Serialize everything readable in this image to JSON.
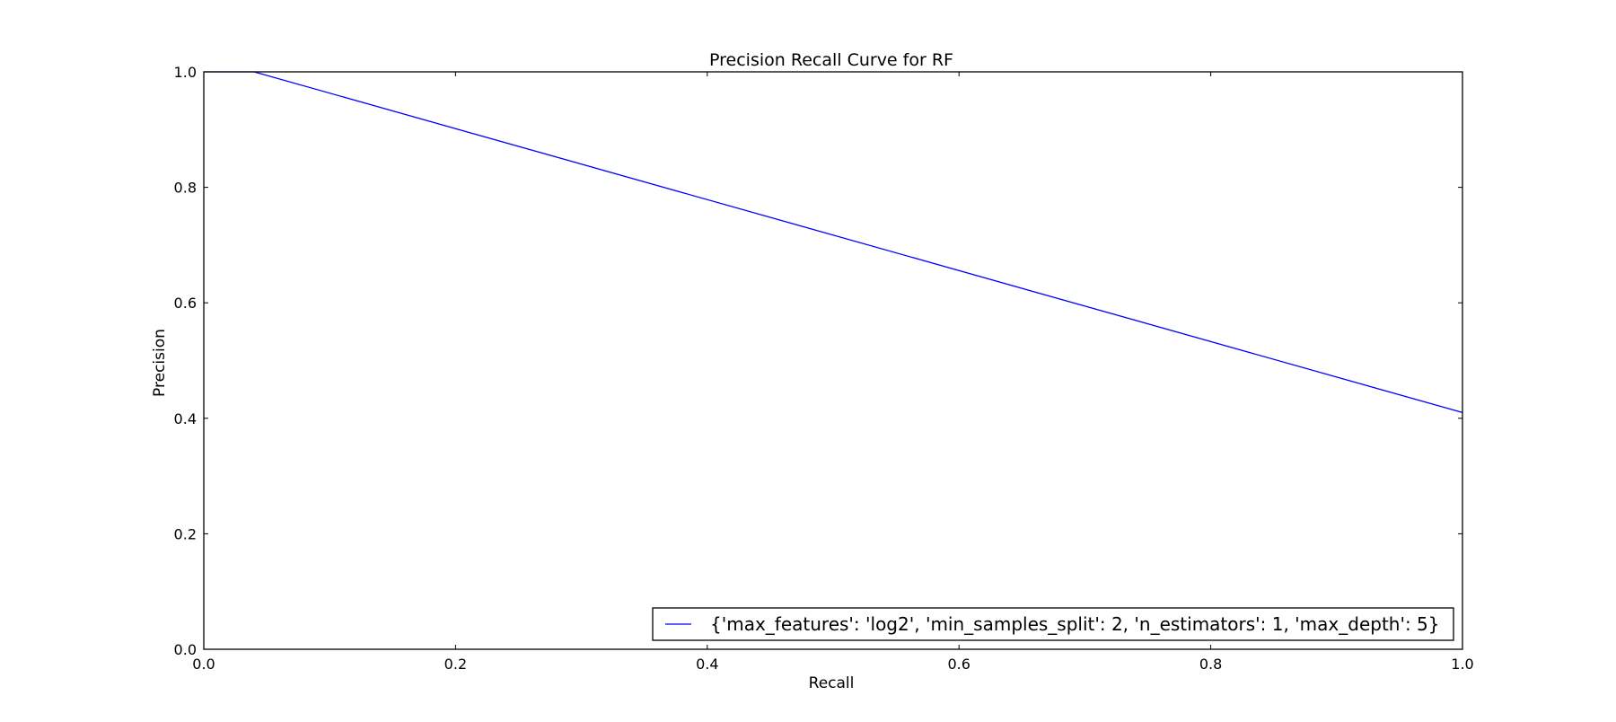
{
  "chart_data": {
    "type": "line",
    "title": "Precision Recall Curve for RF",
    "xlabel": "Recall",
    "ylabel": "Precision",
    "xlim": [
      0.0,
      1.0
    ],
    "ylim": [
      0.0,
      1.0
    ],
    "xticks": [
      "0.0",
      "0.2",
      "0.4",
      "0.6",
      "0.8",
      "1.0"
    ],
    "yticks": [
      "0.0",
      "0.2",
      "0.4",
      "0.6",
      "0.8",
      "1.0"
    ],
    "grid": false,
    "legend_position": "lower-right",
    "series": [
      {
        "name": "{'max_features': 'log2', 'min_samples_split': 2, 'n_estimators': 1, 'max_depth': 5}",
        "color": "#0000ff",
        "x": [
          0.0,
          0.04,
          1.0
        ],
        "y": [
          1.0,
          1.0,
          0.41
        ]
      }
    ]
  }
}
